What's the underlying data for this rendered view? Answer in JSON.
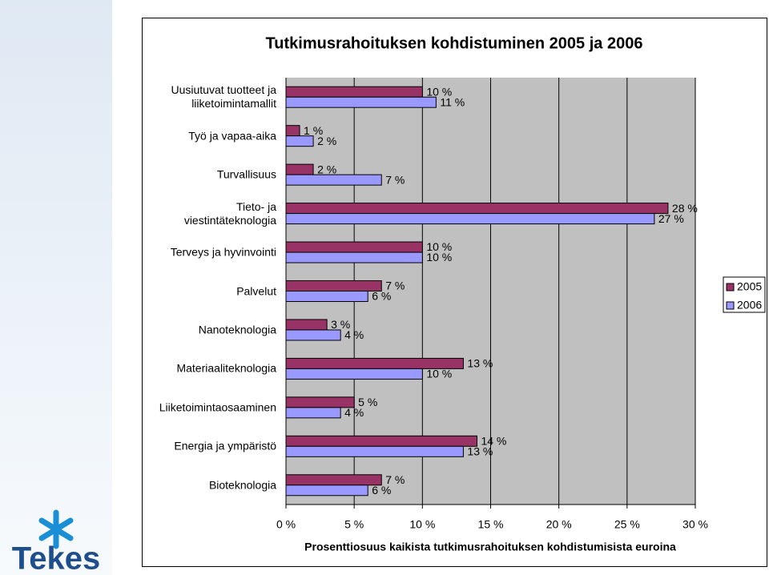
{
  "chart_data": {
    "type": "bar",
    "orientation": "horizontal",
    "title": "Tutkimusrahoituksen kohdistuminen 2005 ja 2006",
    "x_label": "Prosenttiosuus kaikista tutkimusrahoituksen kohdistumisista euroina",
    "categories": [
      "Uusiutuvat tuotteet ja\nliiketoimintamallit",
      "Työ ja vapaa-aika",
      "Turvallisuus",
      "Tieto- ja\nviestintäteknologia",
      "Terveys ja hyvinvointi",
      "Palvelut",
      "Nanoteknologia",
      "Materiaaliteknologia",
      "Liiketoimintaosaaminen",
      "Energia ja ympäristö",
      "Bioteknologia"
    ],
    "series": [
      {
        "name": "2005",
        "color": "#993366",
        "values": [
          10,
          1,
          2,
          28,
          10,
          7,
          3,
          13,
          5,
          14,
          7
        ],
        "value_labels": [
          "10 %",
          "1 %",
          "2 %",
          "28 %",
          "10 %",
          "7 %",
          "3 %",
          "13 %",
          "5 %",
          "14 %",
          "7 %"
        ]
      },
      {
        "name": "2006",
        "color": "#9999ff",
        "values": [
          11,
          2,
          7,
          27,
          10,
          6,
          4,
          10,
          4,
          13,
          6
        ],
        "value_labels": [
          "11 %",
          "2 %",
          "7 %",
          "27 %",
          "10 %",
          "6 %",
          "4 %",
          "10 %",
          "4 %",
          "13 %",
          "6 %"
        ]
      }
    ],
    "xlim": [
      0,
      30
    ],
    "xticks": [
      {
        "value": 0,
        "label": "0 %"
      },
      {
        "value": 5,
        "label": "5 %"
      },
      {
        "value": 10,
        "label": "10 %"
      },
      {
        "value": 15,
        "label": "15 %"
      },
      {
        "value": 20,
        "label": "20 %"
      },
      {
        "value": 25,
        "label": "25 %"
      },
      {
        "value": 30,
        "label": "30 %"
      }
    ],
    "grid": true,
    "legend": "right"
  },
  "logo": {
    "text": "Tekes"
  }
}
